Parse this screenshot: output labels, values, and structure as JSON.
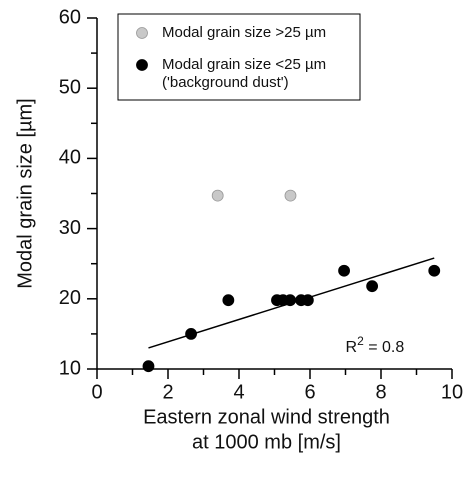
{
  "chart_data": {
    "type": "scatter",
    "x_label": [
      "Eastern zonal wind strength",
      "at 1000 mb [m/s]"
    ],
    "y_label": "Modal grain size [µm]",
    "xlim": [
      0,
      10
    ],
    "ylim": [
      10,
      60
    ],
    "xticks": [
      0,
      2,
      4,
      6,
      8,
      10
    ],
    "yticks": [
      10,
      20,
      30,
      40,
      50,
      60
    ],
    "x_minor_ticks": [
      1,
      3,
      5,
      7,
      9
    ],
    "y_minor_ticks": [
      15,
      25,
      35,
      45,
      55
    ],
    "legend": "upper left",
    "series": [
      {
        "name": [
          "Modal grain size >25 µm"
        ],
        "color": "#c8c8c8",
        "x": [
          3.4,
          5.45
        ],
        "values": [
          34.7,
          34.7
        ]
      },
      {
        "name": [
          "Modal grain size <25 µm",
          "('background dust')"
        ],
        "color": "#000000",
        "x": [
          1.45,
          2.65,
          3.7,
          5.07,
          5.24,
          5.44,
          5.75,
          5.94,
          6.96,
          7.75,
          9.5
        ],
        "values": [
          10.4,
          15,
          19.8,
          19.8,
          19.8,
          19.8,
          19.8,
          19.8,
          24,
          21.8,
          24
        ]
      }
    ],
    "trendline": {
      "x": [
        1.45,
        9.5
      ],
      "values": [
        13,
        25.8
      ]
    },
    "annotation": {
      "base": "R",
      "sup": "2",
      "rest": " = 0.8",
      "x": 7,
      "y": 13
    }
  }
}
